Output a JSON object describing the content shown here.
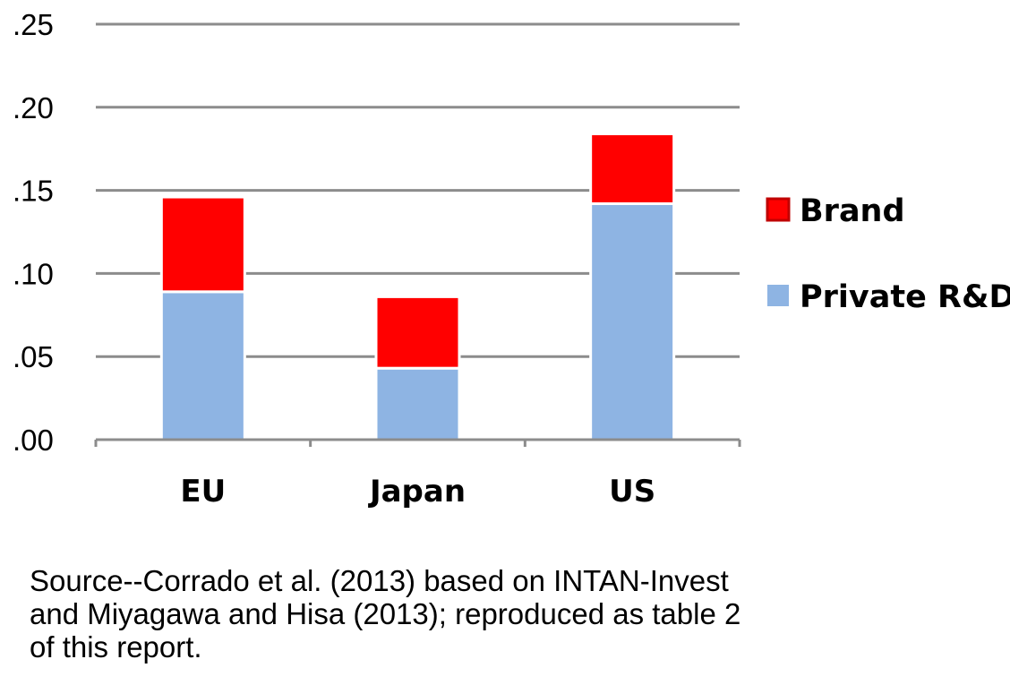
{
  "chart_data": {
    "type": "bar",
    "stacked": true,
    "categories": [
      "EU",
      "Japan",
      "US"
    ],
    "series": [
      {
        "name": "Private R&D",
        "values": [
          0.089,
          0.043,
          0.142
        ],
        "color": "#8eb4e3"
      },
      {
        "name": "Brand",
        "values": [
          0.057,
          0.043,
          0.042
        ],
        "color": "#ff0000"
      }
    ],
    "y_ticks": [
      ".00",
      ".05",
      ".10",
      ".15",
      ".20",
      ".25"
    ],
    "ylim": [
      0,
      0.25
    ],
    "grid": true,
    "legend_position": "right",
    "legend_order": [
      "Brand",
      "Private R&D"
    ]
  },
  "source_note": [
    "Source--Corrado et al. (2013) based on INTAN-Invest",
    "and Miyagawa and Hisa (2013); reproduced as table 2",
    "of this report."
  ],
  "colors": {
    "grid": "#8c8c8c",
    "axis": "#8c8c8c",
    "brand_legend_border": "#c00000"
  }
}
